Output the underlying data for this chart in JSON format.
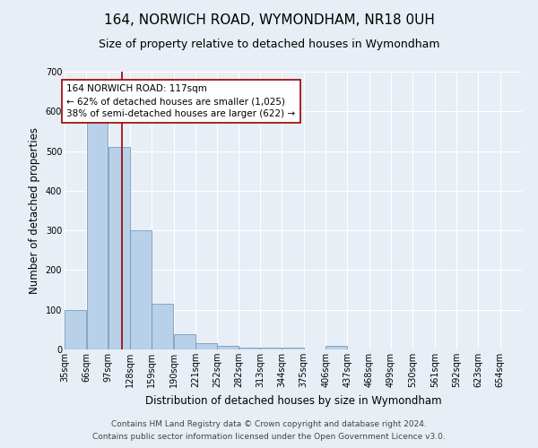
{
  "title": "164, NORWICH ROAD, WYMONDHAM, NR18 0UH",
  "subtitle": "Size of property relative to detached houses in Wymondham",
  "xlabel": "Distribution of detached houses by size in Wymondham",
  "ylabel": "Number of detached properties",
  "footer_line1": "Contains HM Land Registry data © Crown copyright and database right 2024.",
  "footer_line2": "Contains public sector information licensed under the Open Government Licence v3.0.",
  "bin_labels": [
    "35sqm",
    "66sqm",
    "97sqm",
    "128sqm",
    "159sqm",
    "190sqm",
    "221sqm",
    "252sqm",
    "282sqm",
    "313sqm",
    "344sqm",
    "375sqm",
    "406sqm",
    "437sqm",
    "468sqm",
    "499sqm",
    "530sqm",
    "561sqm",
    "592sqm",
    "623sqm",
    "654sqm"
  ],
  "bin_edges": [
    35,
    66,
    97,
    128,
    159,
    190,
    221,
    252,
    282,
    313,
    344,
    375,
    406,
    437,
    468,
    499,
    530,
    561,
    592,
    623,
    654,
    685
  ],
  "bar_heights": [
    100,
    575,
    510,
    300,
    115,
    38,
    15,
    8,
    5,
    5,
    5,
    0,
    8,
    0,
    0,
    0,
    0,
    0,
    0,
    0,
    0
  ],
  "bar_color": "#b8d0e8",
  "bar_edge_color": "#6090b8",
  "property_value": 117,
  "vline_color": "#990000",
  "annotation_text": "164 NORWICH ROAD: 117sqm\n← 62% of detached houses are smaller (1,025)\n38% of semi-detached houses are larger (622) →",
  "annotation_box_color": "white",
  "annotation_box_edge_color": "#990000",
  "ylim": [
    0,
    700
  ],
  "yticks": [
    0,
    100,
    200,
    300,
    400,
    500,
    600,
    700
  ],
  "background_color": "#e8eef5",
  "plot_bg_color": "#e8eef5",
  "grid_color": "white",
  "title_fontsize": 11,
  "subtitle_fontsize": 9,
  "axis_label_fontsize": 8.5,
  "tick_fontsize": 7,
  "annotation_fontsize": 7.5,
  "footer_fontsize": 6.5
}
